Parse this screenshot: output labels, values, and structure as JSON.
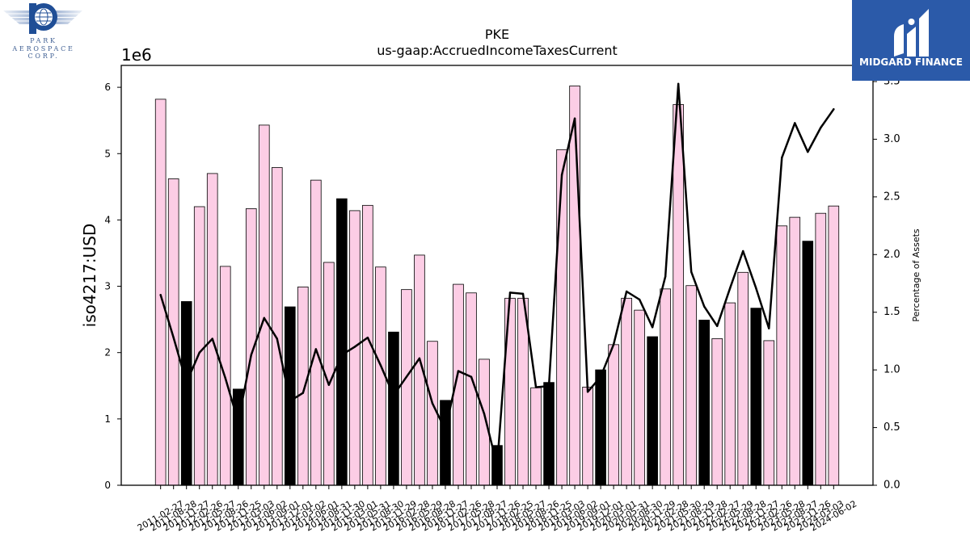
{
  "logos": {
    "left": {
      "lines": [
        "PARK",
        "AEROSPACE",
        "CORP."
      ],
      "color": "#1f4e96"
    },
    "right": {
      "text": "MIDGARD FINANCE",
      "background": "#2b5aa9"
    }
  },
  "chart_data": {
    "type": "bar",
    "title": "PKE",
    "subtitle": "us-gaap:AccruedIncomeTaxesCurrent",
    "ylabel": "iso4217:USD",
    "y_scale_label": "1e6",
    "y2label": "Percentage of Assets",
    "ylim": [
      0,
      6330000
    ],
    "yticks": [
      0,
      1000000,
      2000000,
      3000000,
      4000000,
      5000000,
      6000000
    ],
    "ytick_labels": [
      "0",
      "1",
      "2",
      "3",
      "4",
      "5",
      "6"
    ],
    "y2lim": [
      0,
      3.64
    ],
    "y2ticks": [
      0,
      0.5,
      1.0,
      1.5,
      2.0,
      2.5,
      3.0,
      3.5
    ],
    "y2tick_labels": [
      "0.0",
      "0.5",
      "1.0",
      "1.5",
      "2.0",
      "2.5",
      "3.0",
      "3.5"
    ],
    "grid": false,
    "categories": [
      "2011-02-27",
      "2011-08-28",
      "2011-11-27",
      "2012-02-26",
      "2012-05-27",
      "2012-08-26",
      "2012-11-25",
      "2013-03-03",
      "2013-06-02",
      "2013-09-01",
      "2013-12-01",
      "2014-03-02",
      "2014-06-01",
      "2014-08-31",
      "2014-11-30",
      "2015-03-01",
      "2015-05-31",
      "2015-08-30",
      "2015-11-29",
      "2016-02-28",
      "2016-05-29",
      "2016-08-28",
      "2016-11-27",
      "2017-02-26",
      "2017-05-28",
      "2017-08-27",
      "2017-11-26",
      "2018-02-25",
      "2018-05-27",
      "2018-08-26",
      "2018-11-25",
      "2019-03-03",
      "2019-06-02",
      "2019-09-01",
      "2019-12-01",
      "2020-03-01",
      "2020-05-31",
      "2020-08-30",
      "2020-11-29",
      "2021-02-28",
      "2021-05-30",
      "2021-08-29",
      "2021-11-28",
      "2022-02-27",
      "2022-05-29",
      "2022-08-28",
      "2022-11-27",
      "2023-02-26",
      "2023-05-28",
      "2023-08-27",
      "2023-11-26",
      "2024-03-03",
      "2024-06-02"
    ],
    "series": [
      {
        "type": "bar",
        "axis": "left",
        "values": [
          5820000,
          4620000,
          2770000,
          4200000,
          4700000,
          3300000,
          1450000,
          4170000,
          5430000,
          4790000,
          2690000,
          2990000,
          4600000,
          3360000,
          4320000,
          4140000,
          4220000,
          3290000,
          2310000,
          2950000,
          3470000,
          2170000,
          1280000,
          3030000,
          2900000,
          1900000,
          600000,
          2820000,
          2820000,
          1470000,
          1550000,
          5060000,
          6020000,
          1480000,
          1740000,
          2120000,
          2820000,
          2640000,
          2240000,
          2960000,
          5740000,
          3010000,
          2490000,
          2210000,
          2750000,
          3210000,
          2670000,
          2180000,
          3910000,
          4040000,
          3680000,
          4100000,
          4210000
        ],
        "dark": [
          false,
          false,
          true,
          false,
          false,
          false,
          true,
          false,
          false,
          false,
          true,
          false,
          false,
          false,
          true,
          false,
          false,
          false,
          true,
          false,
          false,
          false,
          true,
          false,
          false,
          false,
          true,
          false,
          false,
          false,
          true,
          false,
          false,
          false,
          true,
          false,
          false,
          false,
          true,
          false,
          false,
          false,
          true,
          false,
          false,
          false,
          true,
          false,
          false,
          false,
          true,
          false,
          false
        ]
      },
      {
        "type": "line",
        "axis": "right",
        "values": [
          1.65,
          1.28,
          0.89,
          1.15,
          1.27,
          0.93,
          0.55,
          1.13,
          1.45,
          1.27,
          0.73,
          0.8,
          1.18,
          0.87,
          1.13,
          1.2,
          1.28,
          1.04,
          0.78,
          0.94,
          1.1,
          0.71,
          0.48,
          0.99,
          0.94,
          0.62,
          0.17,
          1.67,
          1.66,
          0.85,
          0.86,
          2.69,
          3.18,
          0.81,
          0.94,
          1.22,
          1.68,
          1.61,
          1.37,
          1.81,
          3.48,
          1.85,
          1.55,
          1.38,
          1.71,
          2.03,
          1.71,
          1.36,
          2.84,
          3.14,
          2.89,
          3.1,
          3.26
        ]
      }
    ],
    "colors": {
      "bar": "#fccde5",
      "bar_dark": "#000000",
      "bar_edge": "#000000",
      "line": "#000000"
    }
  }
}
